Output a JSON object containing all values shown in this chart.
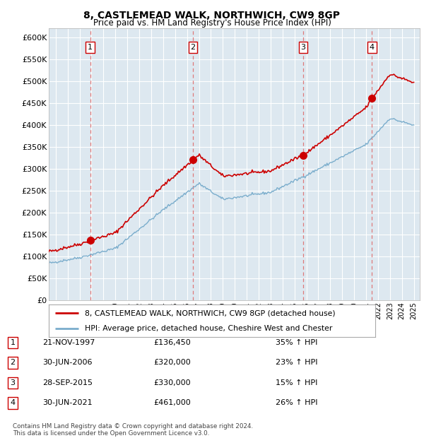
{
  "title": "8, CASTLEMEAD WALK, NORTHWICH, CW9 8GP",
  "subtitle": "Price paid vs. HM Land Registry's House Price Index (HPI)",
  "ylim": [
    0,
    620000
  ],
  "yticks": [
    0,
    50000,
    100000,
    150000,
    200000,
    250000,
    300000,
    350000,
    400000,
    450000,
    500000,
    550000,
    600000
  ],
  "transactions": [
    {
      "date": "1997-11-21",
      "price": 136450,
      "label": "1",
      "pct": "35%",
      "direction": "↑"
    },
    {
      "date": "2006-06-30",
      "price": 320000,
      "label": "2",
      "pct": "23%",
      "direction": "↑"
    },
    {
      "date": "2015-09-28",
      "price": 330000,
      "label": "3",
      "pct": "15%",
      "direction": "↑"
    },
    {
      "date": "2021-06-30",
      "price": 461000,
      "label": "4",
      "pct": "26%",
      "direction": "↑"
    }
  ],
  "legend_property_label": "8, CASTLEMEAD WALK, NORTHWICH, CW9 8GP (detached house)",
  "legend_hpi_label": "HPI: Average price, detached house, Cheshire West and Chester",
  "property_line_color": "#cc0000",
  "hpi_line_color": "#7aadcc",
  "transaction_marker_color": "#cc0000",
  "dashed_line_color": "#dd6666",
  "footnote1": "Contains HM Land Registry data © Crown copyright and database right 2024.",
  "footnote2": "This data is licensed under the Open Government Licence v3.0.",
  "background_color": "#ffffff",
  "plot_bg_color": "#dde8f0",
  "grid_color": "#ffffff",
  "table_rows": [
    [
      "1",
      "21-NOV-1997",
      "£136,450",
      "35% ↑ HPI"
    ],
    [
      "2",
      "30-JUN-2006",
      "£320,000",
      "23% ↑ HPI"
    ],
    [
      "3",
      "28-SEP-2015",
      "£330,000",
      "15% ↑ HPI"
    ],
    [
      "4",
      "30-JUN-2021",
      "£461,000",
      "26% ↑ HPI"
    ]
  ]
}
